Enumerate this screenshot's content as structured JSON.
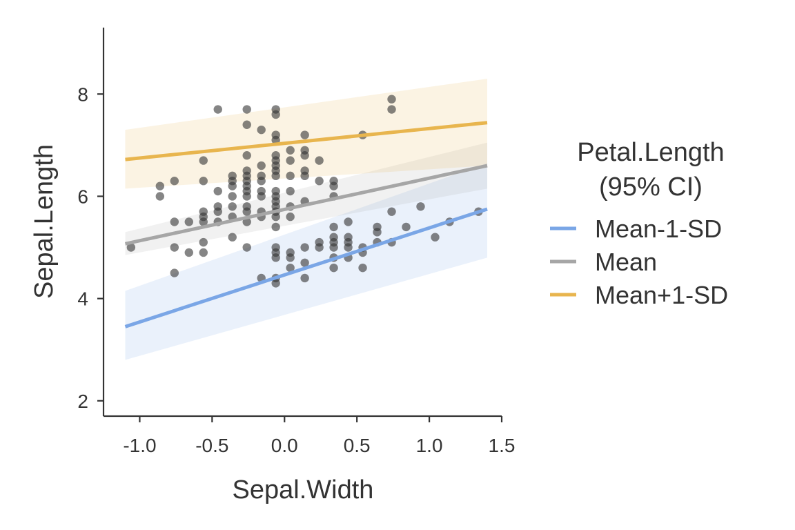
{
  "chart_data": {
    "type": "scatter",
    "xlabel": "Sepal.Width",
    "ylabel": "Sepal.Length",
    "xlim": [
      -1.25,
      1.5
    ],
    "ylim": [
      1.7,
      9.3
    ],
    "x_ticks": [
      "-1.0",
      "-0.5",
      "0.0",
      "0.5",
      "1.0",
      "1.5"
    ],
    "y_ticks": [
      "2",
      "4",
      "6",
      "8"
    ],
    "grid": false,
    "legend_position": "right",
    "legend_title": [
      "Petal.Length",
      "(95% CI)"
    ],
    "points": [
      [
        -1.06,
        5.0
      ],
      [
        -0.86,
        6.2
      ],
      [
        -0.86,
        6.0
      ],
      [
        -0.76,
        5.5
      ],
      [
        -0.76,
        6.3
      ],
      [
        -0.76,
        5.0
      ],
      [
        -0.76,
        4.5
      ],
      [
        -0.66,
        5.5
      ],
      [
        -0.66,
        4.9
      ],
      [
        -0.56,
        6.7
      ],
      [
        -0.56,
        6.3
      ],
      [
        -0.56,
        5.7
      ],
      [
        -0.56,
        5.6
      ],
      [
        -0.56,
        5.5
      ],
      [
        -0.56,
        5.1
      ],
      [
        -0.56,
        4.9
      ],
      [
        -0.46,
        7.7
      ],
      [
        -0.46,
        6.1
      ],
      [
        -0.46,
        5.8
      ],
      [
        -0.46,
        5.7
      ],
      [
        -0.46,
        5.5
      ],
      [
        -0.36,
        6.4
      ],
      [
        -0.36,
        6.3
      ],
      [
        -0.36,
        6.2
      ],
      [
        -0.36,
        6.0
      ],
      [
        -0.36,
        5.8
      ],
      [
        -0.36,
        5.6
      ],
      [
        -0.36,
        5.2
      ],
      [
        -0.26,
        7.7
      ],
      [
        -0.26,
        7.4
      ],
      [
        -0.26,
        6.8
      ],
      [
        -0.26,
        6.5
      ],
      [
        -0.26,
        6.4
      ],
      [
        -0.26,
        6.3
      ],
      [
        -0.26,
        6.2
      ],
      [
        -0.26,
        6.1
      ],
      [
        -0.26,
        6.0
      ],
      [
        -0.26,
        5.8
      ],
      [
        -0.26,
        5.7
      ],
      [
        -0.26,
        5.5
      ],
      [
        -0.26,
        5.0
      ],
      [
        -0.16,
        7.3
      ],
      [
        -0.16,
        6.6
      ],
      [
        -0.16,
        6.4
      ],
      [
        -0.16,
        6.3
      ],
      [
        -0.16,
        6.1
      ],
      [
        -0.16,
        6.0
      ],
      [
        -0.16,
        5.7
      ],
      [
        -0.16,
        5.6
      ],
      [
        -0.16,
        4.4
      ],
      [
        -0.06,
        7.7
      ],
      [
        -0.06,
        7.6
      ],
      [
        -0.06,
        7.2
      ],
      [
        -0.06,
        7.1
      ],
      [
        -0.06,
        6.8
      ],
      [
        -0.06,
        6.7
      ],
      [
        -0.06,
        6.6
      ],
      [
        -0.06,
        6.5
      ],
      [
        -0.06,
        6.4
      ],
      [
        -0.06,
        6.1
      ],
      [
        -0.06,
        6.0
      ],
      [
        -0.06,
        5.9
      ],
      [
        -0.06,
        5.8
      ],
      [
        -0.06,
        5.7
      ],
      [
        -0.06,
        5.6
      ],
      [
        -0.06,
        5.4
      ],
      [
        -0.06,
        5.0
      ],
      [
        -0.06,
        4.9
      ],
      [
        -0.06,
        4.8
      ],
      [
        -0.06,
        4.4
      ],
      [
        -0.06,
        4.3
      ],
      [
        0.04,
        6.9
      ],
      [
        0.04,
        6.7
      ],
      [
        0.04,
        6.4
      ],
      [
        0.04,
        6.1
      ],
      [
        0.04,
        5.8
      ],
      [
        0.04,
        5.6
      ],
      [
        0.04,
        4.9
      ],
      [
        0.04,
        4.8
      ],
      [
        0.04,
        4.6
      ],
      [
        0.14,
        7.2
      ],
      [
        0.14,
        6.9
      ],
      [
        0.14,
        6.8
      ],
      [
        0.14,
        6.5
      ],
      [
        0.14,
        6.4
      ],
      [
        0.14,
        5.9
      ],
      [
        0.14,
        5.0
      ],
      [
        0.14,
        4.7
      ],
      [
        0.14,
        4.4
      ],
      [
        0.24,
        6.7
      ],
      [
        0.24,
        6.3
      ],
      [
        0.24,
        5.1
      ],
      [
        0.24,
        5.0
      ],
      [
        0.34,
        6.3
      ],
      [
        0.34,
        6.2
      ],
      [
        0.34,
        6.0
      ],
      [
        0.34,
        5.4
      ],
      [
        0.34,
        5.2
      ],
      [
        0.34,
        5.1
      ],
      [
        0.34,
        5.0
      ],
      [
        0.34,
        4.8
      ],
      [
        0.34,
        4.6
      ],
      [
        0.44,
        5.5
      ],
      [
        0.44,
        5.2
      ],
      [
        0.44,
        5.1
      ],
      [
        0.44,
        5.0
      ],
      [
        0.44,
        4.8
      ],
      [
        0.54,
        7.2
      ],
      [
        0.54,
        5.0
      ],
      [
        0.54,
        4.9
      ],
      [
        0.54,
        4.6
      ],
      [
        0.64,
        5.4
      ],
      [
        0.64,
        5.3
      ],
      [
        0.64,
        5.1
      ],
      [
        0.74,
        7.9
      ],
      [
        0.74,
        7.7
      ],
      [
        0.74,
        5.7
      ],
      [
        0.74,
        5.1
      ],
      [
        0.84,
        5.4
      ],
      [
        0.94,
        5.8
      ],
      [
        1.04,
        5.2
      ],
      [
        1.14,
        5.5
      ],
      [
        1.34,
        5.7
      ]
    ],
    "series": [
      {
        "name": "Mean-1-SD",
        "x": [
          -1.1,
          1.4
        ],
        "y": [
          3.45,
          5.75
        ],
        "ci_lower": [
          2.8,
          4.8
        ],
        "ci_upper": [
          4.15,
          6.65
        ]
      },
      {
        "name": "Mean",
        "x": [
          -1.1,
          1.4
        ],
        "y": [
          5.07,
          6.6
        ],
        "ci_lower": [
          4.85,
          6.15
        ],
        "ci_upper": [
          5.3,
          7.05
        ]
      },
      {
        "name": "Mean+1-SD",
        "x": [
          -1.1,
          1.4
        ],
        "y": [
          6.72,
          7.44
        ],
        "ci_lower": [
          6.15,
          6.6
        ],
        "ci_upper": [
          7.3,
          8.3
        ]
      }
    ],
    "colors": {
      "Mean-1-SD": "#7aa6e6",
      "Mean": "#a6a6a6",
      "Mean+1-SD": "#e8b54e",
      "points": "#333333",
      "axis": "#333333"
    }
  }
}
